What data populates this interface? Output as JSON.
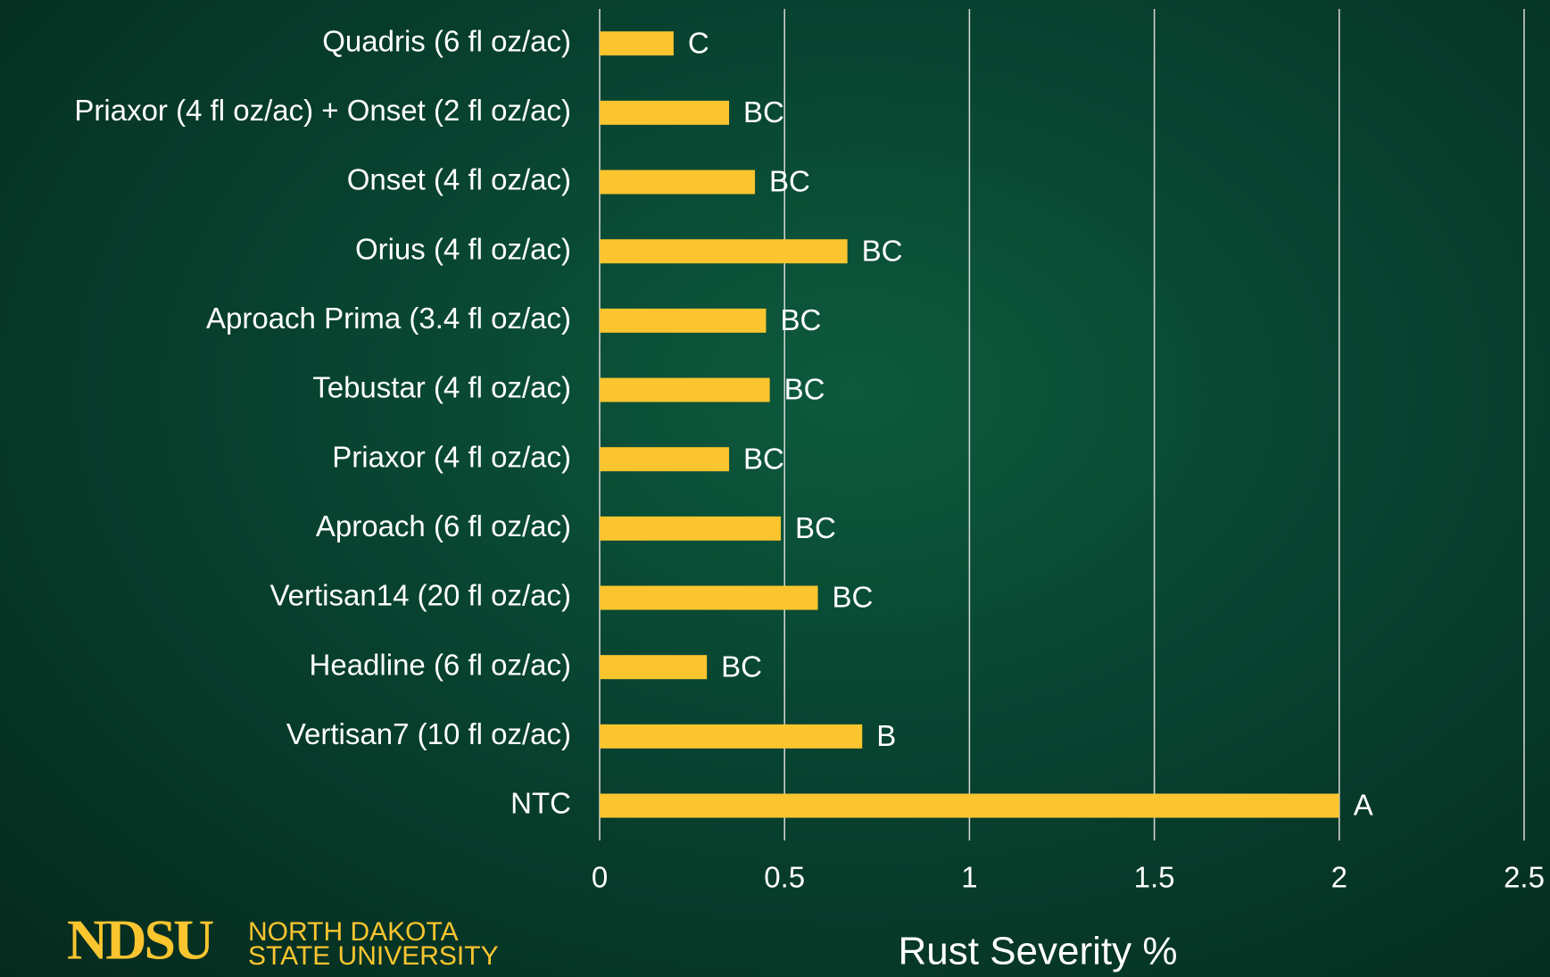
{
  "chart_data": {
    "type": "barh",
    "categories": [
      "Quadris (6 fl oz/ac)",
      "Priaxor (4 fl oz/ac) + Onset (2 fl oz/ac)",
      "Onset (4 fl oz/ac)",
      "Orius (4 fl oz/ac)",
      "Aproach Prima (3.4 fl oz/ac)",
      "Tebustar (4 fl oz/ac)",
      "Priaxor (4 fl oz/ac)",
      "Aproach (6 fl oz/ac)",
      "Vertisan14 (20 fl oz/ac)",
      "Headline (6 fl oz/ac)",
      "Vertisan7 (10 fl oz/ac)",
      "NTC"
    ],
    "values": [
      0.2,
      0.35,
      0.42,
      0.67,
      0.45,
      0.46,
      0.35,
      0.49,
      0.59,
      0.29,
      0.71,
      2.0
    ],
    "letters": [
      "C",
      "BC",
      "BC",
      "BC",
      "BC",
      "BC",
      "BC",
      "BC",
      "BC",
      "BC",
      "B",
      "A"
    ],
    "color": "#fbc52f",
    "xlabel": "Rust Severity %",
    "xlim": [
      0,
      2.5
    ],
    "xticks": [
      0,
      0.5,
      1,
      1.5,
      2,
      2.5
    ],
    "grid": true
  },
  "logo": {
    "mark": "NDSU",
    "line1": "NORTH DAKOTA",
    "line2": "STATE UNIVERSITY"
  }
}
